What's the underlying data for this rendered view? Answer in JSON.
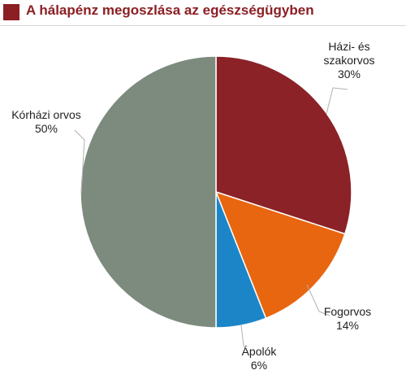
{
  "colors": {
    "accent": "#8b1f24",
    "leader": "#b0b0b0"
  },
  "chart_data": {
    "type": "pie",
    "title": "A hálapénz megoszlása az egészségügyben",
    "start": "12 o'clock, clockwise",
    "slices": [
      {
        "label_lines": [
          "Házi- és",
          "szakorvos"
        ],
        "pct_text": "30%",
        "value": 30,
        "color": "#8b2227"
      },
      {
        "label_lines": [
          "Fogorvos"
        ],
        "pct_text": "14%",
        "value": 14,
        "color": "#e8660f"
      },
      {
        "label_lines": [
          "Ápolók"
        ],
        "pct_text": "6%",
        "value": 6,
        "color": "#1b85c7"
      },
      {
        "label_lines": [
          "Kórházi orvos"
        ],
        "pct_text": "50%",
        "value": 50,
        "color": "#7d8b7e"
      }
    ]
  }
}
